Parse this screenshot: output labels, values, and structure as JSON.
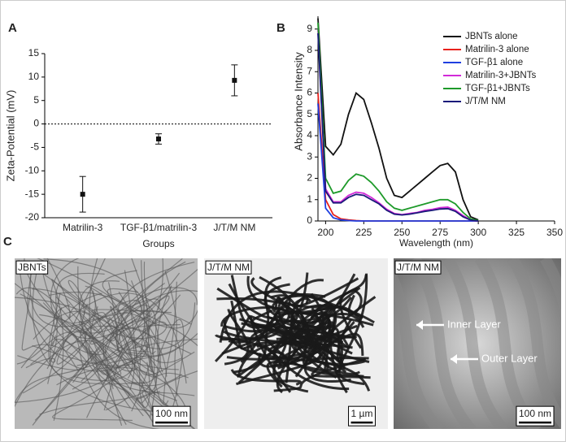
{
  "panel_labels": [
    "A",
    "B",
    "C"
  ],
  "chart_data": [
    {
      "type": "errorbar",
      "ylabel": "Zeta-Potential (mV)",
      "xlabel": "Groups",
      "categories": [
        "Matrilin-3",
        "TGF-β1/matrilin-3",
        "J/T/M NM"
      ],
      "values": [
        -15,
        -3.2,
        9.3
      ],
      "errors": [
        3.8,
        1.1,
        3.3
      ],
      "color": "#111111",
      "ylim": [
        -20,
        15
      ],
      "yticks": [
        -20,
        -15,
        -10,
        -5,
        0,
        5,
        10,
        15
      ],
      "reference_line": 0
    },
    {
      "type": "line",
      "xlabel": "Wavelength (nm)",
      "ylabel": "Absorbance Intensity",
      "x": [
        195,
        200,
        205,
        210,
        215,
        220,
        225,
        230,
        235,
        240,
        245,
        250,
        255,
        260,
        265,
        270,
        275,
        280,
        285,
        290,
        295,
        300
      ],
      "series": [
        {
          "name": "JBNTs alone",
          "color": "#111111",
          "values": [
            9.5,
            3.5,
            3.1,
            3.6,
            5.0,
            6.0,
            5.7,
            4.6,
            3.4,
            2.0,
            1.2,
            1.1,
            1.4,
            1.7,
            2.0,
            2.3,
            2.6,
            2.7,
            2.3,
            1.0,
            0.2,
            0.05
          ]
        },
        {
          "name": "Matrilin-3 alone",
          "color": "#e8211d",
          "values": [
            6.0,
            1.0,
            0.3,
            0.1,
            0.05,
            0.02,
            0,
            0,
            0,
            0,
            0,
            0,
            0,
            0,
            0,
            0,
            0,
            0,
            0,
            0,
            0,
            0
          ]
        },
        {
          "name": "TGF-β1 alone",
          "color": "#1f3fe0",
          "values": [
            5.5,
            0.6,
            0.15,
            0.05,
            0.02,
            0,
            0,
            0,
            0,
            0,
            0,
            0,
            0,
            0,
            0,
            0,
            0,
            0,
            0,
            0,
            0,
            0
          ]
        },
        {
          "name": "Matrilin-3+JBNTs",
          "color": "#d22ad8",
          "values": [
            9.0,
            1.5,
            0.9,
            0.9,
            1.2,
            1.35,
            1.3,
            1.1,
            0.85,
            0.55,
            0.35,
            0.3,
            0.35,
            0.4,
            0.5,
            0.55,
            0.62,
            0.65,
            0.5,
            0.25,
            0.05,
            0
          ]
        },
        {
          "name": "TGF-β1+JBNTs",
          "color": "#1e9a2a",
          "values": [
            9.3,
            2.0,
            1.3,
            1.4,
            1.9,
            2.2,
            2.1,
            1.8,
            1.4,
            0.9,
            0.6,
            0.5,
            0.6,
            0.7,
            0.8,
            0.9,
            1.0,
            1.0,
            0.8,
            0.4,
            0.1,
            0.02
          ]
        },
        {
          "name": "J/T/M NM",
          "color": "#1a1a7a",
          "values": [
            8.8,
            1.4,
            0.85,
            0.85,
            1.1,
            1.25,
            1.2,
            1.0,
            0.8,
            0.5,
            0.32,
            0.28,
            0.32,
            0.38,
            0.45,
            0.5,
            0.56,
            0.58,
            0.45,
            0.2,
            0.04,
            0
          ]
        }
      ],
      "xlim": [
        195,
        350
      ],
      "xticks": [
        200,
        225,
        250,
        275,
        300,
        325,
        350
      ],
      "ylim": [
        0,
        9.6
      ],
      "yticks": [
        0,
        1,
        2,
        3,
        4,
        5,
        6,
        7,
        8,
        9
      ],
      "legend": "upper right"
    }
  ],
  "micrographs": [
    {
      "label": "JBNTs",
      "scale": "100 nm"
    },
    {
      "label": "J/T/M NM",
      "scale": "1 µm"
    },
    {
      "label": "J/T/M NM",
      "scale": "100 nm",
      "annotations": [
        "Inner Layer",
        "Outer Layer"
      ]
    }
  ]
}
